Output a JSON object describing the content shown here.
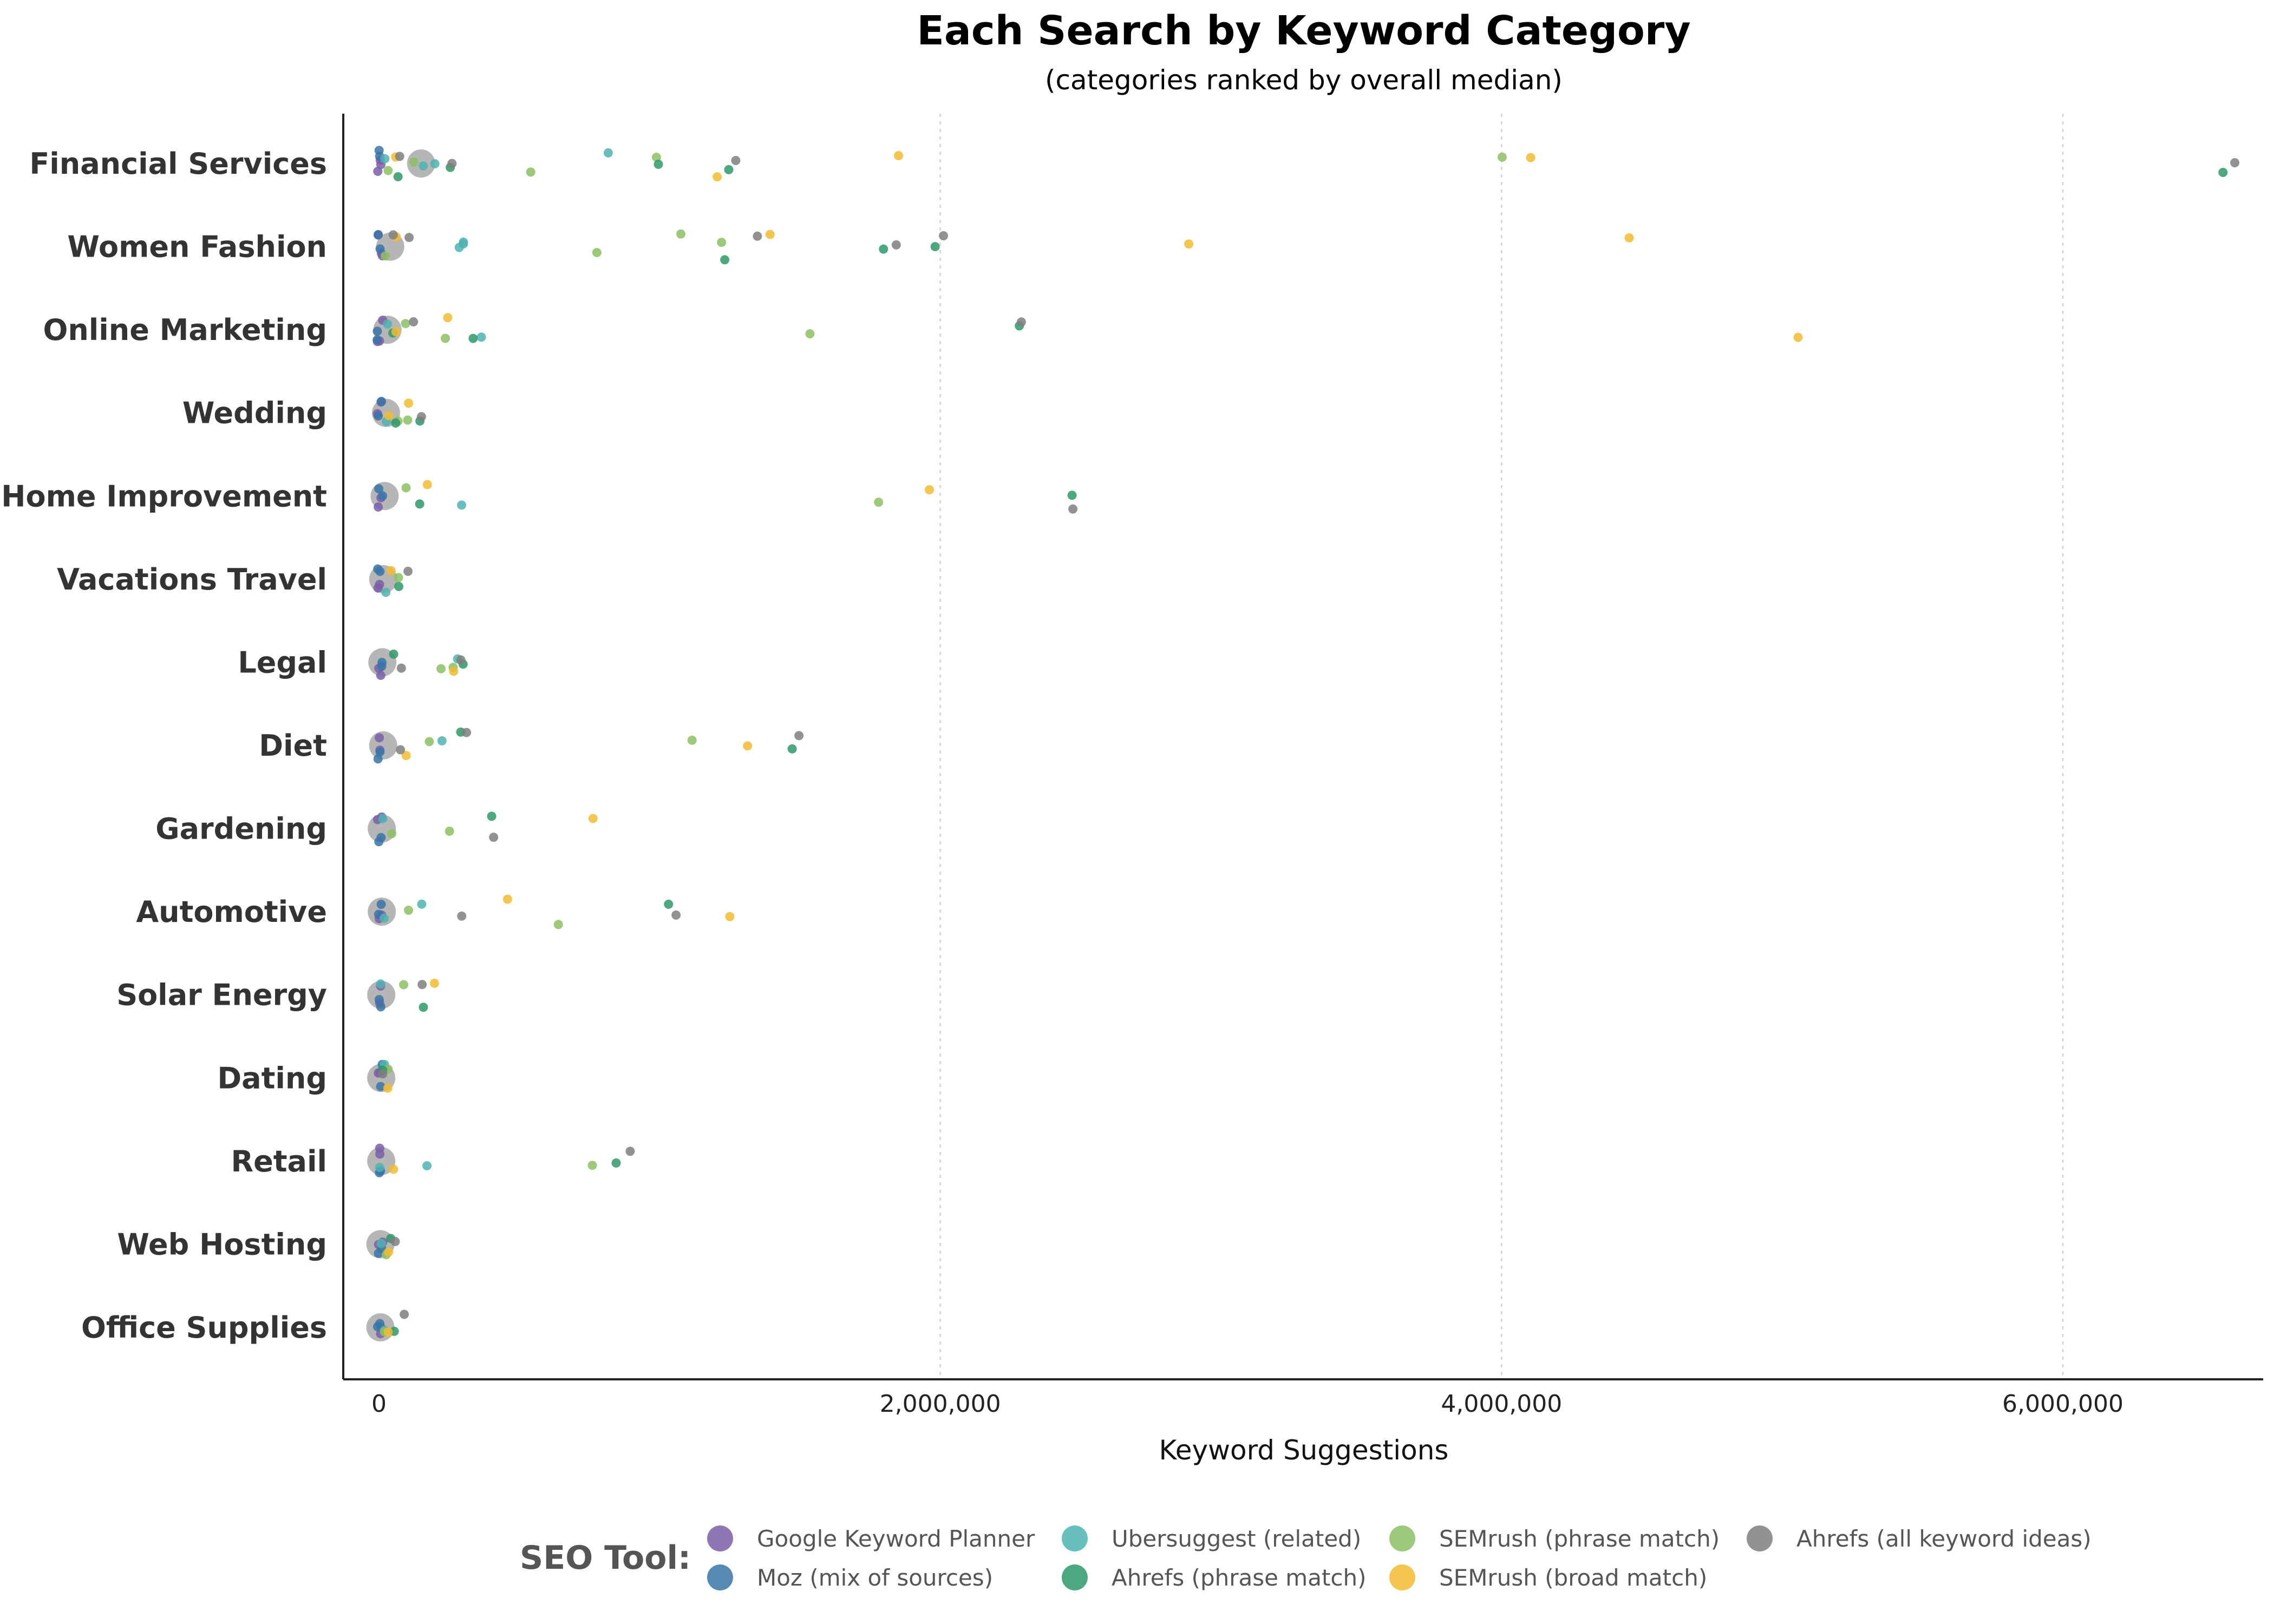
{
  "chart_data": {
    "type": "scatter",
    "title": "Each Search by Keyword Category",
    "subtitle": "(categories ranked by overall median)",
    "xlabel": "Keyword Suggestions",
    "xlim": [
      -120000,
      6850000
    ],
    "xticks": [
      0,
      2000000,
      4000000,
      6000000
    ],
    "xtick_labels": [
      "0",
      "2,000,000",
      "4,000,000",
      "6,000,000"
    ],
    "grid": "vertical-dotted",
    "legend_placement": "bottom",
    "legend_title": "SEO Tool:",
    "categories": [
      "Financial Services",
      "Women Fashion",
      "Online Marketing",
      "Wedding",
      "Home Improvement",
      "Vacations Travel",
      "Legal",
      "Diet",
      "Gardening",
      "Automotive",
      "Solar Energy",
      "Dating",
      "Retail",
      "Web Hosting",
      "Office Supplies"
    ],
    "medians": [
      150000,
      40000,
      30000,
      25000,
      20000,
      15000,
      12000,
      15000,
      10000,
      10000,
      8000,
      8000,
      8000,
      5000,
      5000
    ],
    "series": [
      {
        "name": "Google Keyword Planner",
        "color": "#7b5ea7",
        "points": [
          {
            "c": 0,
            "x": 2000
          },
          {
            "c": 0,
            "x": 4000
          },
          {
            "c": 0,
            "x": 6000
          },
          {
            "c": 1,
            "x": 2000
          },
          {
            "c": 1,
            "x": 4000
          },
          {
            "c": 1,
            "x": 6000
          },
          {
            "c": 2,
            "x": 2000
          },
          {
            "c": 2,
            "x": 4000
          },
          {
            "c": 2,
            "x": 6000
          },
          {
            "c": 3,
            "x": 2000
          },
          {
            "c": 3,
            "x": 4000
          },
          {
            "c": 4,
            "x": 2000
          },
          {
            "c": 4,
            "x": 4000
          },
          {
            "c": 5,
            "x": 2000
          },
          {
            "c": 5,
            "x": 4000
          },
          {
            "c": 6,
            "x": 2000
          },
          {
            "c": 6,
            "x": 4000
          },
          {
            "c": 7,
            "x": 2000
          },
          {
            "c": 7,
            "x": 4000
          },
          {
            "c": 8,
            "x": 2000
          },
          {
            "c": 8,
            "x": 4000
          },
          {
            "c": 9,
            "x": 2000
          },
          {
            "c": 9,
            "x": 4000
          },
          {
            "c": 10,
            "x": 2000
          },
          {
            "c": 10,
            "x": 4000
          },
          {
            "c": 11,
            "x": 2000
          },
          {
            "c": 11,
            "x": 4000
          },
          {
            "c": 12,
            "x": 2000
          },
          {
            "c": 12,
            "x": 4000
          },
          {
            "c": 13,
            "x": 2000
          },
          {
            "c": 13,
            "x": 4000
          },
          {
            "c": 14,
            "x": 2000
          },
          {
            "c": 14,
            "x": 4000
          }
        ]
      },
      {
        "name": "Moz (mix of sources)",
        "color": "#3a74a8",
        "points": [
          {
            "c": 0,
            "x": 1000
          },
          {
            "c": 0,
            "x": 3000
          },
          {
            "c": 1,
            "x": 1000
          },
          {
            "c": 1,
            "x": 3000
          },
          {
            "c": 2,
            "x": 1000
          },
          {
            "c": 2,
            "x": 3000
          },
          {
            "c": 3,
            "x": 1000
          },
          {
            "c": 3,
            "x": 3000
          },
          {
            "c": 4,
            "x": 1000
          },
          {
            "c": 4,
            "x": 3000
          },
          {
            "c": 5,
            "x": 1000
          },
          {
            "c": 5,
            "x": 3000
          },
          {
            "c": 6,
            "x": 1000
          },
          {
            "c": 6,
            "x": 3000
          },
          {
            "c": 7,
            "x": 1000
          },
          {
            "c": 7,
            "x": 3000
          },
          {
            "c": 8,
            "x": 1000
          },
          {
            "c": 8,
            "x": 3000
          },
          {
            "c": 9,
            "x": 1000
          },
          {
            "c": 9,
            "x": 3000
          },
          {
            "c": 10,
            "x": 1000
          },
          {
            "c": 10,
            "x": 3000
          },
          {
            "c": 11,
            "x": 1000
          },
          {
            "c": 11,
            "x": 3000
          },
          {
            "c": 12,
            "x": 1000
          },
          {
            "c": 12,
            "x": 3000
          },
          {
            "c": 13,
            "x": 1000
          },
          {
            "c": 13,
            "x": 3000
          },
          {
            "c": 14,
            "x": 1000
          },
          {
            "c": 14,
            "x": 3000
          }
        ]
      },
      {
        "name": "Ubersuggest (related)",
        "color": "#4fb3b3",
        "points": [
          {
            "c": 0,
            "x": 200000
          },
          {
            "c": 0,
            "x": 820000
          },
          {
            "c": 0,
            "x": 150000
          },
          {
            "c": 0,
            "x": 30000
          },
          {
            "c": 1,
            "x": 280000
          },
          {
            "c": 1,
            "x": 310000
          },
          {
            "c": 1,
            "x": 300000
          },
          {
            "c": 2,
            "x": 370000
          },
          {
            "c": 2,
            "x": 30000
          },
          {
            "c": 3,
            "x": 20000
          },
          {
            "c": 4,
            "x": 290000
          },
          {
            "c": 5,
            "x": 15000
          },
          {
            "c": 6,
            "x": 280000
          },
          {
            "c": 7,
            "x": 220000
          },
          {
            "c": 8,
            "x": 20000
          },
          {
            "c": 9,
            "x": 150000
          },
          {
            "c": 9,
            "x": 10000
          },
          {
            "c": 10,
            "x": 10000
          },
          {
            "c": 11,
            "x": 15000
          },
          {
            "c": 12,
            "x": 180000
          },
          {
            "c": 12,
            "x": 10000
          },
          {
            "c": 13,
            "x": 10000
          },
          {
            "c": 14,
            "x": 10000
          }
        ]
      },
      {
        "name": "SEMrush (phrase match)",
        "color": "#8cc163",
        "points": [
          {
            "c": 0,
            "x": 545000
          },
          {
            "c": 0,
            "x": 980000
          },
          {
            "c": 0,
            "x": 4000000
          },
          {
            "c": 0,
            "x": 40000
          },
          {
            "c": 0,
            "x": 130000
          },
          {
            "c": 1,
            "x": 770000
          },
          {
            "c": 1,
            "x": 1070000
          },
          {
            "c": 1,
            "x": 1230000
          },
          {
            "c": 1,
            "x": 30000
          },
          {
            "c": 2,
            "x": 1540000
          },
          {
            "c": 2,
            "x": 230000
          },
          {
            "c": 2,
            "x": 100000
          },
          {
            "c": 3,
            "x": 70000
          },
          {
            "c": 3,
            "x": 100000
          },
          {
            "c": 4,
            "x": 1780000
          },
          {
            "c": 4,
            "x": 100000
          },
          {
            "c": 5,
            "x": 60000
          },
          {
            "c": 6,
            "x": 220000
          },
          {
            "c": 6,
            "x": 270000
          },
          {
            "c": 7,
            "x": 1110000
          },
          {
            "c": 7,
            "x": 180000
          },
          {
            "c": 8,
            "x": 260000
          },
          {
            "c": 8,
            "x": 50000
          },
          {
            "c": 9,
            "x": 640000
          },
          {
            "c": 9,
            "x": 110000
          },
          {
            "c": 10,
            "x": 80000
          },
          {
            "c": 11,
            "x": 30000
          },
          {
            "c": 12,
            "x": 760000
          },
          {
            "c": 13,
            "x": 20000
          },
          {
            "c": 14,
            "x": 20000
          }
        ]
      },
      {
        "name": "Ahrefs (phrase match)",
        "color": "#2e9968",
        "points": [
          {
            "c": 0,
            "x": 1240000
          },
          {
            "c": 0,
            "x": 6570000
          },
          {
            "c": 0,
            "x": 60000
          },
          {
            "c": 0,
            "x": 1000000
          },
          {
            "c": 0,
            "x": 260000
          },
          {
            "c": 1,
            "x": 1240000
          },
          {
            "c": 1,
            "x": 1800000
          },
          {
            "c": 1,
            "x": 1990000
          },
          {
            "c": 2,
            "x": 2280000
          },
          {
            "c": 2,
            "x": 340000
          },
          {
            "c": 2,
            "x": 40000
          },
          {
            "c": 3,
            "x": 150000
          },
          {
            "c": 3,
            "x": 60000
          },
          {
            "c": 4,
            "x": 2470000
          },
          {
            "c": 4,
            "x": 140000
          },
          {
            "c": 5,
            "x": 70000
          },
          {
            "c": 6,
            "x": 290000
          },
          {
            "c": 6,
            "x": 50000
          },
          {
            "c": 7,
            "x": 1480000
          },
          {
            "c": 7,
            "x": 300000
          },
          {
            "c": 8,
            "x": 400000
          },
          {
            "c": 9,
            "x": 1040000
          },
          {
            "c": 10,
            "x": 160000
          },
          {
            "c": 11,
            "x": 20000
          },
          {
            "c": 12,
            "x": 850000
          },
          {
            "c": 13,
            "x": 50000
          },
          {
            "c": 14,
            "x": 50000
          }
        ]
      },
      {
        "name": "SEMrush (broad match)",
        "color": "#f2bb30",
        "points": [
          {
            "c": 0,
            "x": 1200000
          },
          {
            "c": 0,
            "x": 1850000
          },
          {
            "c": 0,
            "x": 4100000
          },
          {
            "c": 0,
            "x": 50000
          },
          {
            "c": 1,
            "x": 1390000
          },
          {
            "c": 1,
            "x": 2890000
          },
          {
            "c": 1,
            "x": 4450000
          },
          {
            "c": 1,
            "x": 60000
          },
          {
            "c": 2,
            "x": 5060000
          },
          {
            "c": 2,
            "x": 240000
          },
          {
            "c": 2,
            "x": 60000
          },
          {
            "c": 3,
            "x": 110000
          },
          {
            "c": 3,
            "x": 40000
          },
          {
            "c": 4,
            "x": 1960000
          },
          {
            "c": 4,
            "x": 170000
          },
          {
            "c": 5,
            "x": 40000
          },
          {
            "c": 6,
            "x": 260000
          },
          {
            "c": 7,
            "x": 1320000
          },
          {
            "c": 7,
            "x": 90000
          },
          {
            "c": 8,
            "x": 770000
          },
          {
            "c": 9,
            "x": 450000
          },
          {
            "c": 9,
            "x": 1250000
          },
          {
            "c": 10,
            "x": 190000
          },
          {
            "c": 11,
            "x": 40000
          },
          {
            "c": 12,
            "x": 60000
          },
          {
            "c": 13,
            "x": 30000
          },
          {
            "c": 14,
            "x": 30000
          }
        ]
      },
      {
        "name": "Ahrefs (all keyword ideas)",
        "color": "#7f7f7f",
        "points": [
          {
            "c": 0,
            "x": 260000
          },
          {
            "c": 0,
            "x": 1270000
          },
          {
            "c": 0,
            "x": 6620000
          },
          {
            "c": 0,
            "x": 75000
          },
          {
            "c": 1,
            "x": 1340000
          },
          {
            "c": 1,
            "x": 1850000
          },
          {
            "c": 1,
            "x": 2020000
          },
          {
            "c": 1,
            "x": 100000
          },
          {
            "c": 1,
            "x": 50000
          },
          {
            "c": 2,
            "x": 2290000
          },
          {
            "c": 2,
            "x": 120000
          },
          {
            "c": 3,
            "x": 160000
          },
          {
            "c": 4,
            "x": 2480000
          },
          {
            "c": 5,
            "x": 110000
          },
          {
            "c": 6,
            "x": 300000
          },
          {
            "c": 6,
            "x": 80000
          },
          {
            "c": 7,
            "x": 1490000
          },
          {
            "c": 7,
            "x": 320000
          },
          {
            "c": 7,
            "x": 80000
          },
          {
            "c": 8,
            "x": 410000
          },
          {
            "c": 9,
            "x": 1060000
          },
          {
            "c": 9,
            "x": 300000
          },
          {
            "c": 10,
            "x": 160000
          },
          {
            "c": 11,
            "x": 20000
          },
          {
            "c": 12,
            "x": 900000
          },
          {
            "c": 13,
            "x": 60000
          },
          {
            "c": 14,
            "x": 90000
          }
        ]
      }
    ]
  }
}
